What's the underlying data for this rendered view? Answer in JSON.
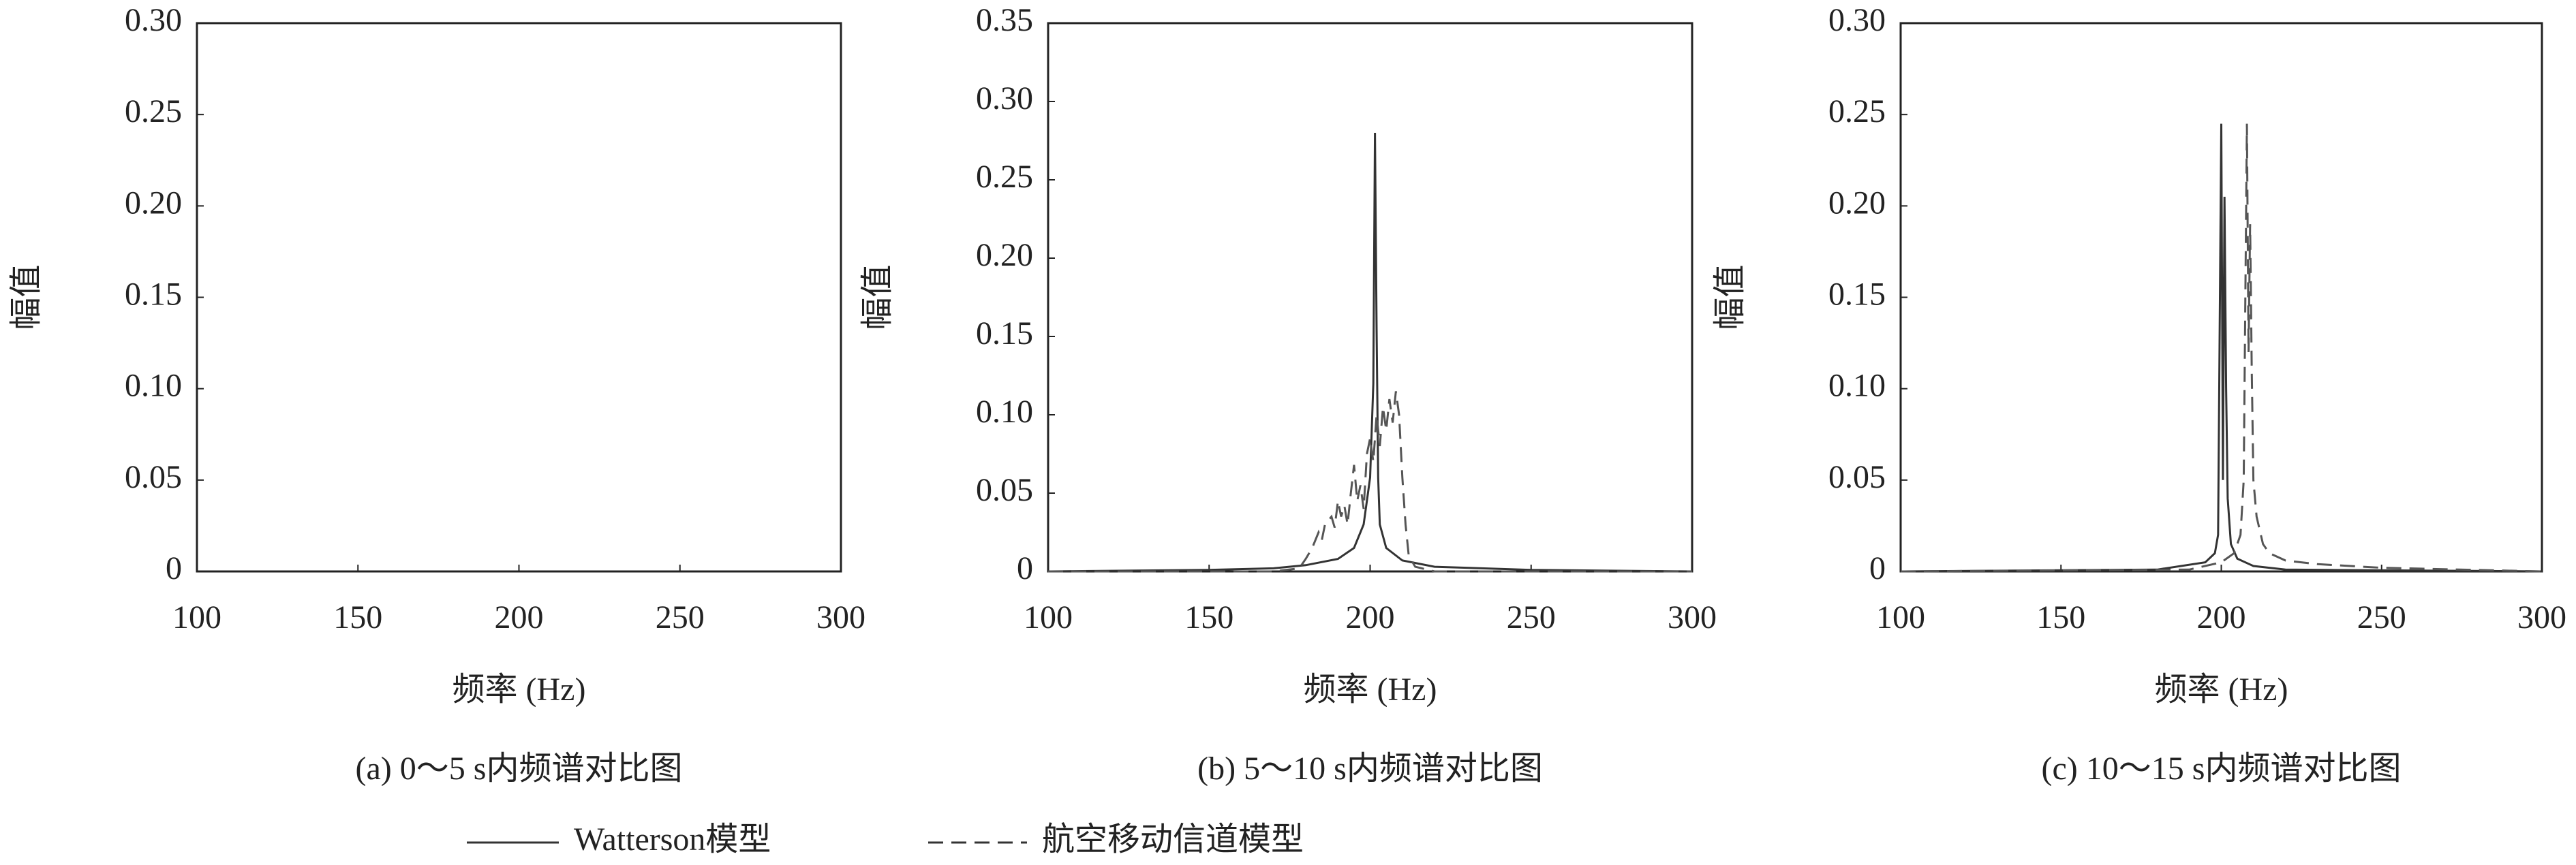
{
  "chart_data": [
    {
      "type": "line",
      "caption": "(a) 0～5 s内频谱对比图",
      "xlabel": "频率 (Hz)",
      "ylabel": "幅值",
      "xlim": [
        100,
        300
      ],
      "xticks": [
        100,
        150,
        200,
        250,
        300
      ],
      "ylim": [
        0,
        0.3
      ],
      "yticks": [
        0,
        0.05,
        {
          "value": 0.1,
          "label": "0.10"
        },
        0.15,
        {
          "value": 0.2,
          "label": "0.20"
        },
        0.25,
        {
          "value": 0.3,
          "label": "0.30"
        }
      ],
      "series": []
    },
    {
      "type": "line",
      "caption": "(b) 5～10 s内频谱对比图",
      "xlabel": "频率 (Hz)",
      "ylabel": "幅值",
      "xlim": [
        100,
        300
      ],
      "xticks": [
        100,
        150,
        200,
        250,
        300
      ],
      "ylim": [
        0,
        0.35
      ],
      "yticks": [
        0,
        0.05,
        {
          "value": 0.1,
          "label": "0.10"
        },
        0.15,
        {
          "value": 0.2,
          "label": "0.20"
        },
        0.25,
        {
          "value": 0.3,
          "label": "0.30"
        },
        0.35
      ],
      "series": [
        {
          "style": "solid",
          "color": "#333333",
          "x": [
            100,
            150,
            170,
            180,
            190,
            195,
            198,
            200,
            201,
            201.5,
            202,
            202.5,
            203,
            205,
            210,
            220,
            250,
            300
          ],
          "values": [
            0,
            0.001,
            0.002,
            0.004,
            0.008,
            0.015,
            0.03,
            0.06,
            0.12,
            0.28,
            0.155,
            0.06,
            0.03,
            0.015,
            0.007,
            0.003,
            0.001,
            0
          ]
        },
        {
          "style": "dashed",
          "color": "#555555",
          "x": [
            100,
            170,
            178,
            180,
            182,
            184,
            185,
            186,
            188,
            189,
            190,
            191,
            192,
            193,
            194,
            195,
            196,
            197,
            198,
            199,
            200,
            201,
            202,
            203,
            204,
            205,
            206,
            207,
            208,
            209,
            210,
            211,
            212,
            214,
            220,
            300
          ],
          "values": [
            0,
            0,
            0.002,
            0.008,
            0.015,
            0.025,
            0.02,
            0.03,
            0.035,
            0.028,
            0.045,
            0.035,
            0.042,
            0.03,
            0.05,
            0.068,
            0.045,
            0.055,
            0.04,
            0.075,
            0.085,
            0.07,
            0.1,
            0.08,
            0.105,
            0.09,
            0.11,
            0.095,
            0.115,
            0.1,
            0.06,
            0.03,
            0.01,
            0.003,
            0,
            0
          ]
        }
      ]
    },
    {
      "type": "line",
      "caption": "(c) 10～15 s内频谱对比图",
      "xlabel": "频率 (Hz)",
      "ylabel": "幅值",
      "xlim": [
        100,
        300
      ],
      "xticks": [
        100,
        150,
        200,
        250,
        300
      ],
      "ylim": [
        0,
        0.3
      ],
      "yticks": [
        0,
        0.05,
        {
          "value": 0.1,
          "label": "0.10"
        },
        0.15,
        {
          "value": 0.2,
          "label": "0.20"
        },
        0.25,
        {
          "value": 0.3,
          "label": "0.30"
        }
      ],
      "series": [
        {
          "style": "solid",
          "color": "#333333",
          "x": [
            100,
            180,
            195,
            198,
            199,
            200,
            200.5,
            201,
            201.5,
            202,
            203,
            205,
            210,
            220,
            300
          ],
          "values": [
            0,
            0.001,
            0.005,
            0.01,
            0.02,
            0.245,
            0.05,
            0.205,
            0.1,
            0.04,
            0.015,
            0.007,
            0.003,
            0.001,
            0
          ]
        },
        {
          "style": "dashed",
          "color": "#555555",
          "x": [
            100,
            190,
            200,
            204,
            206,
            207,
            208,
            208.5,
            209,
            209.5,
            210,
            211,
            213,
            215,
            220,
            230,
            250,
            300
          ],
          "values": [
            0,
            0.001,
            0.005,
            0.01,
            0.02,
            0.05,
            0.245,
            0.12,
            0.19,
            0.11,
            0.05,
            0.03,
            0.015,
            0.01,
            0.006,
            0.004,
            0.002,
            0
          ]
        }
      ]
    }
  ],
  "legend": [
    {
      "name": "Watterson模型",
      "style": "solid"
    },
    {
      "name": "航空移动信道模型",
      "style": "dashed"
    }
  ]
}
